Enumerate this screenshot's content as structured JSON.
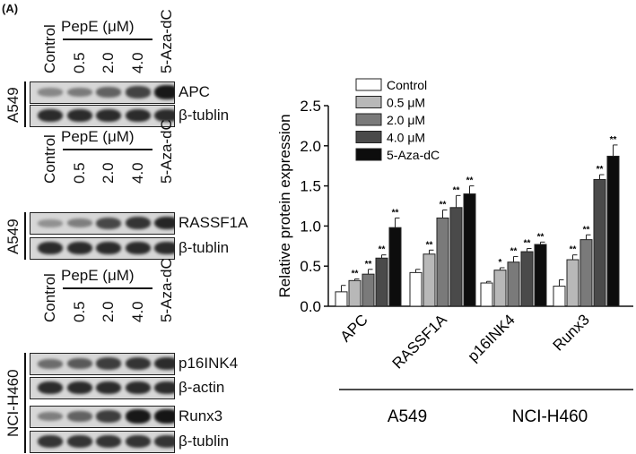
{
  "panel_label": "(A)",
  "blots": {
    "treatment_label": "PepE (μM)",
    "lanes": [
      "Control",
      "0.5",
      "2.0",
      "4.0",
      "5-Aza-dC"
    ],
    "groups": [
      {
        "cell_line": "A549",
        "rows": [
          {
            "label": "APC",
            "intensity": [
              0.35,
              0.42,
              0.55,
              0.72,
              0.95
            ]
          },
          {
            "label": "β-tublin",
            "intensity": [
              0.85,
              0.85,
              0.85,
              0.85,
              0.85
            ]
          }
        ]
      },
      {
        "cell_line": "A549",
        "rows": [
          {
            "label": "RASSF1A",
            "intensity": [
              0.3,
              0.4,
              0.7,
              0.8,
              0.88
            ]
          },
          {
            "label": "β-tublin",
            "intensity": [
              0.85,
              0.85,
              0.85,
              0.85,
              0.85
            ]
          }
        ]
      },
      {
        "cell_line": "NCI-H460",
        "rows": [
          {
            "label": "p16INK4",
            "intensity": [
              0.5,
              0.6,
              0.75,
              0.8,
              0.85
            ]
          },
          {
            "label": "β-actin",
            "intensity": [
              0.85,
              0.85,
              0.85,
              0.85,
              0.85
            ]
          },
          {
            "label": "Runx3",
            "intensity": [
              0.4,
              0.55,
              0.75,
              0.95,
              0.97
            ]
          },
          {
            "label": "β-tublin",
            "intensity": [
              0.8,
              0.8,
              0.8,
              0.8,
              0.8
            ]
          }
        ]
      }
    ]
  },
  "chart_data": {
    "type": "bar",
    "ylabel": "Relative protein expression",
    "ylim": [
      0,
      2.5
    ],
    "yticks": [
      "0.0",
      "0.5",
      "1.0",
      "1.5",
      "2.0",
      "2.5"
    ],
    "categories": [
      "APC",
      "RASSF1A",
      "p16INK4",
      "Runx3"
    ],
    "groups": [
      {
        "label": "A549",
        "categories": [
          "APC",
          "RASSF1A"
        ]
      },
      {
        "label": "NCI-H460",
        "categories": [
          "p16INK4",
          "Runx3"
        ]
      }
    ],
    "legend_position": "top-left",
    "series": [
      {
        "name": "Control",
        "color": "#ffffff",
        "values": [
          0.18,
          0.42,
          0.29,
          0.25
        ],
        "errors": [
          0.08,
          0.04,
          0.02,
          0.08
        ],
        "stars": [
          "",
          "",
          "",
          ""
        ]
      },
      {
        "name": "0.5 μM",
        "color": "#b8b8b8",
        "values": [
          0.32,
          0.65,
          0.45,
          0.58
        ],
        "errors": [
          0.02,
          0.05,
          0.03,
          0.06
        ],
        "stars": [
          "**",
          "**",
          "*",
          "**"
        ]
      },
      {
        "name": "2.0 μM",
        "color": "#7a7a7a",
        "values": [
          0.4,
          1.1,
          0.55,
          0.83
        ],
        "errors": [
          0.06,
          0.1,
          0.07,
          0.06
        ],
        "stars": [
          "**",
          "**",
          "**",
          "**"
        ]
      },
      {
        "name": "4.0 μM",
        "color": "#4a4a4a",
        "values": [
          0.6,
          1.23,
          0.68,
          1.58
        ],
        "errors": [
          0.04,
          0.15,
          0.04,
          0.06
        ],
        "stars": [
          "**",
          "**",
          "**",
          "**"
        ]
      },
      {
        "name": "5-Aza-dC",
        "color": "#0d0d0d",
        "values": [
          0.98,
          1.4,
          0.77,
          1.87
        ],
        "errors": [
          0.12,
          0.1,
          0.03,
          0.14
        ],
        "stars": [
          "**",
          "**",
          "**",
          "**"
        ]
      }
    ]
  }
}
